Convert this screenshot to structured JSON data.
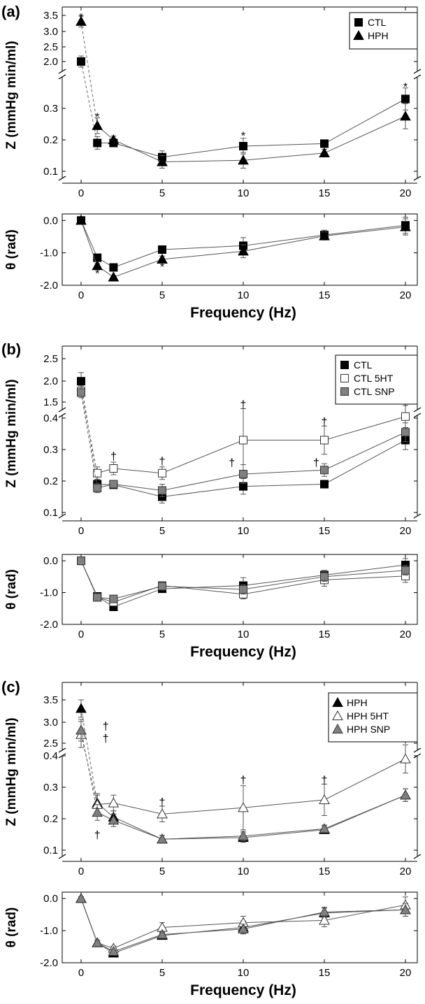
{
  "chart_data": [
    {
      "panel_label": "(a)",
      "type": "line",
      "x": [
        0,
        1,
        2,
        5,
        10,
        15,
        20
      ],
      "xticks": [
        "0",
        "5",
        "10",
        "15",
        "20"
      ],
      "xlabel": "Frequency (Hz)",
      "z_axis": {
        "label": "Z (mmHg min/ml)",
        "broken": true,
        "upper_ticks": [
          "2.0",
          "2.5",
          "3.0",
          "3.5"
        ],
        "lower_ticks": [
          "0.1",
          "0.2",
          "0.3"
        ]
      },
      "theta_axis": {
        "label": "θ (rad)",
        "ticks": [
          "0.0",
          "-1.0",
          "-2.0"
        ],
        "ylim": [
          -2.0,
          0.2
        ]
      },
      "legend": [
        "CTL",
        "HPH"
      ],
      "series": [
        {
          "name": "CTL",
          "marker": "square",
          "fill": "#000000",
          "z": [
            2.0,
            0.19,
            0.19,
            0.145,
            0.18,
            0.188,
            0.33
          ],
          "z_err": [
            0.18,
            0.02,
            0.012,
            0.02,
            0.025,
            0.012,
            0.035
          ],
          "theta": [
            0.0,
            -1.15,
            -1.45,
            -0.9,
            -0.78,
            -0.45,
            -0.15
          ],
          "theta_err": [
            0.05,
            0.07,
            0.05,
            0.08,
            0.25,
            0.15,
            0.25
          ]
        },
        {
          "name": "HPH",
          "marker": "triangle",
          "fill": "#000000",
          "z": [
            3.3,
            0.245,
            0.2,
            0.13,
            0.135,
            0.158,
            0.275
          ],
          "z_err": [
            0.18,
            0.025,
            0.012,
            0.02,
            0.025,
            0.012,
            0.04
          ],
          "theta": [
            0.0,
            -1.4,
            -1.75,
            -1.2,
            -0.95,
            -0.48,
            -0.2
          ],
          "theta_err": [
            0.05,
            0.07,
            0.05,
            0.1,
            0.2,
            0.12,
            0.25
          ]
        }
      ],
      "annotations": [
        {
          "text": "*",
          "x": 0,
          "axis": "z",
          "y": 3.45
        },
        {
          "text": "*",
          "x": 1,
          "axis": "z",
          "y": 0.275
        },
        {
          "text": "*",
          "x": 10,
          "axis": "z",
          "y": 0.215
        },
        {
          "text": "*",
          "x": 20,
          "axis": "z",
          "y": 0.37
        },
        {
          "text": "*",
          "x": 1,
          "axis": "theta",
          "y": -1.62
        },
        {
          "text": "*",
          "x": 2,
          "axis": "theta",
          "y": -1.85
        },
        {
          "text": "*",
          "x": 5,
          "axis": "theta",
          "y": -1.42
        }
      ]
    },
    {
      "panel_label": "(b)",
      "type": "line",
      "x": [
        0,
        1,
        2,
        5,
        10,
        15,
        20
      ],
      "xticks": [
        "0",
        "5",
        "10",
        "15",
        "20"
      ],
      "xlabel": "Frequency (Hz)",
      "z_axis": {
        "label": "Z (mmHg min/ml)",
        "broken": true,
        "upper_ticks": [
          "1.5",
          "2.0",
          "2.5"
        ],
        "lower_ticks": [
          "0.1",
          "0.2",
          "0.3",
          "0.4"
        ]
      },
      "theta_axis": {
        "label": "θ (rad)",
        "ticks": [
          "0.0",
          "-1.0",
          "-2.0"
        ],
        "ylim": [
          -2.0,
          0.2
        ]
      },
      "legend": [
        "CTL",
        "CTL 5HT",
        "CTL SNP"
      ],
      "series": [
        {
          "name": "CTL",
          "marker": "square",
          "fill": "#000000",
          "z": [
            1.98,
            0.19,
            0.188,
            0.15,
            0.183,
            0.19,
            0.33
          ],
          "z_err": [
            0.2,
            0.015,
            0.01,
            0.02,
            0.025,
            0.01,
            0.03
          ],
          "theta": [
            0.0,
            -1.12,
            -1.45,
            -0.88,
            -0.78,
            -0.45,
            -0.13
          ],
          "theta_err": [
            0.05,
            0.07,
            0.06,
            0.08,
            0.25,
            0.15,
            0.2
          ]
        },
        {
          "name": "CTL 5HT",
          "marker": "square",
          "fill": "#ffffff",
          "z": [
            1.75,
            0.225,
            0.24,
            0.225,
            0.33,
            0.33,
            0.405
          ],
          "z_err": [
            0.12,
            0.02,
            0.02,
            0.02,
            0.1,
            0.045,
            0.035
          ],
          "theta": [
            0.0,
            -1.15,
            -1.3,
            -0.78,
            -1.05,
            -0.6,
            -0.48
          ],
          "theta_err": [
            0.05,
            0.07,
            0.06,
            0.08,
            0.15,
            0.2,
            0.2
          ]
        },
        {
          "name": "CTL SNP",
          "marker": "square",
          "fill": "#808080",
          "z": [
            1.72,
            0.178,
            0.19,
            0.17,
            0.222,
            0.235,
            0.355
          ],
          "z_err": [
            0.12,
            0.015,
            0.01,
            0.02,
            0.03,
            0.02,
            0.03
          ],
          "theta": [
            0.0,
            -1.15,
            -1.2,
            -0.8,
            -0.9,
            -0.5,
            -0.3
          ],
          "theta_err": [
            0.05,
            0.07,
            0.06,
            0.08,
            0.15,
            0.15,
            0.15
          ]
        }
      ],
      "annotations": [
        {
          "text": "†",
          "x": 2,
          "axis": "z",
          "y": 0.28
        },
        {
          "text": "†",
          "x": 5,
          "axis": "z",
          "y": 0.265
        },
        {
          "text": "†",
          "x": 10,
          "axis": "z",
          "y": 0.445
        },
        {
          "text": "†",
          "x": 9.3,
          "axis": "z",
          "y": 0.26
        },
        {
          "text": "†",
          "x": 15,
          "axis": "z",
          "y": 0.39
        },
        {
          "text": "†",
          "x": 14.5,
          "axis": "z",
          "y": 0.26
        },
        {
          "text": "†",
          "x": 20,
          "axis": "z",
          "y": 0.455
        }
      ]
    },
    {
      "panel_label": "(c)",
      "type": "line",
      "x": [
        0,
        1,
        2,
        5,
        10,
        15,
        20
      ],
      "xticks": [
        "0",
        "5",
        "10",
        "15",
        "20"
      ],
      "xlabel": "Frequency (Hz)",
      "z_axis": {
        "label": "Z (mmHg min/ml)",
        "broken": true,
        "upper_ticks": [
          "2.5",
          "3.0",
          "3.5"
        ],
        "lower_ticks": [
          "0.1",
          "0.2",
          "0.3",
          "0.4"
        ]
      },
      "theta_axis": {
        "label": "θ (rad)",
        "ticks": [
          "0.0",
          "-1.0",
          "-2.0"
        ],
        "ylim": [
          -2.0,
          0.2
        ]
      },
      "legend": [
        "HPH",
        "HPH 5HT",
        "HPH SNP"
      ],
      "series": [
        {
          "name": "HPH",
          "marker": "triangle",
          "fill": "#000000",
          "z": [
            3.3,
            0.25,
            0.205,
            0.135,
            0.14,
            0.165,
            0.275
          ],
          "z_err": [
            0.2,
            0.03,
            0.02,
            0.012,
            0.015,
            0.012,
            0.02
          ],
          "theta": [
            0.0,
            -1.38,
            -1.7,
            -1.15,
            -0.9,
            -0.45,
            -0.35
          ],
          "theta_err": [
            0.05,
            0.08,
            0.07,
            0.08,
            0.2,
            0.15,
            0.2
          ]
        },
        {
          "name": "HPH 5HT",
          "marker": "triangle",
          "fill": "#ffffff",
          "z": [
            2.7,
            0.245,
            0.25,
            0.215,
            0.235,
            0.26,
            0.39
          ],
          "z_err": [
            0.3,
            0.03,
            0.025,
            0.025,
            0.07,
            0.05,
            0.045
          ],
          "theta": [
            0.0,
            -1.38,
            -1.55,
            -0.9,
            -0.75,
            -0.68,
            -0.2
          ],
          "theta_err": [
            0.05,
            0.08,
            0.07,
            0.15,
            0.2,
            0.2,
            0.25
          ]
        },
        {
          "name": "HPH SNP",
          "marker": "triangle",
          "fill": "#808080",
          "z": [
            2.8,
            0.22,
            0.195,
            0.135,
            0.145,
            0.168,
            0.275
          ],
          "z_err": [
            0.25,
            0.025,
            0.02,
            0.012,
            0.015,
            0.012,
            0.02
          ],
          "theta": [
            0.0,
            -1.38,
            -1.65,
            -1.12,
            -0.95,
            -0.42,
            -0.35
          ],
          "theta_err": [
            0.05,
            0.08,
            0.07,
            0.08,
            0.15,
            0.15,
            0.2
          ]
        }
      ],
      "annotations": [
        {
          "text": "†",
          "x": 1,
          "axis": "z_upper",
          "y": 2.9
        },
        {
          "text": "†",
          "x": 1,
          "axis": "z_upper",
          "y": 2.62
        },
        {
          "text": "†",
          "x": 1,
          "axis": "z",
          "y": 0.15
        },
        {
          "text": "†",
          "x": 5,
          "axis": "z",
          "y": 0.255
        },
        {
          "text": "†",
          "x": 10,
          "axis": "z",
          "y": 0.325
        },
        {
          "text": "†",
          "x": 15,
          "axis": "z",
          "y": 0.325
        },
        {
          "text": "†",
          "x": 20,
          "axis": "z",
          "y": 0.455
        }
      ]
    }
  ]
}
